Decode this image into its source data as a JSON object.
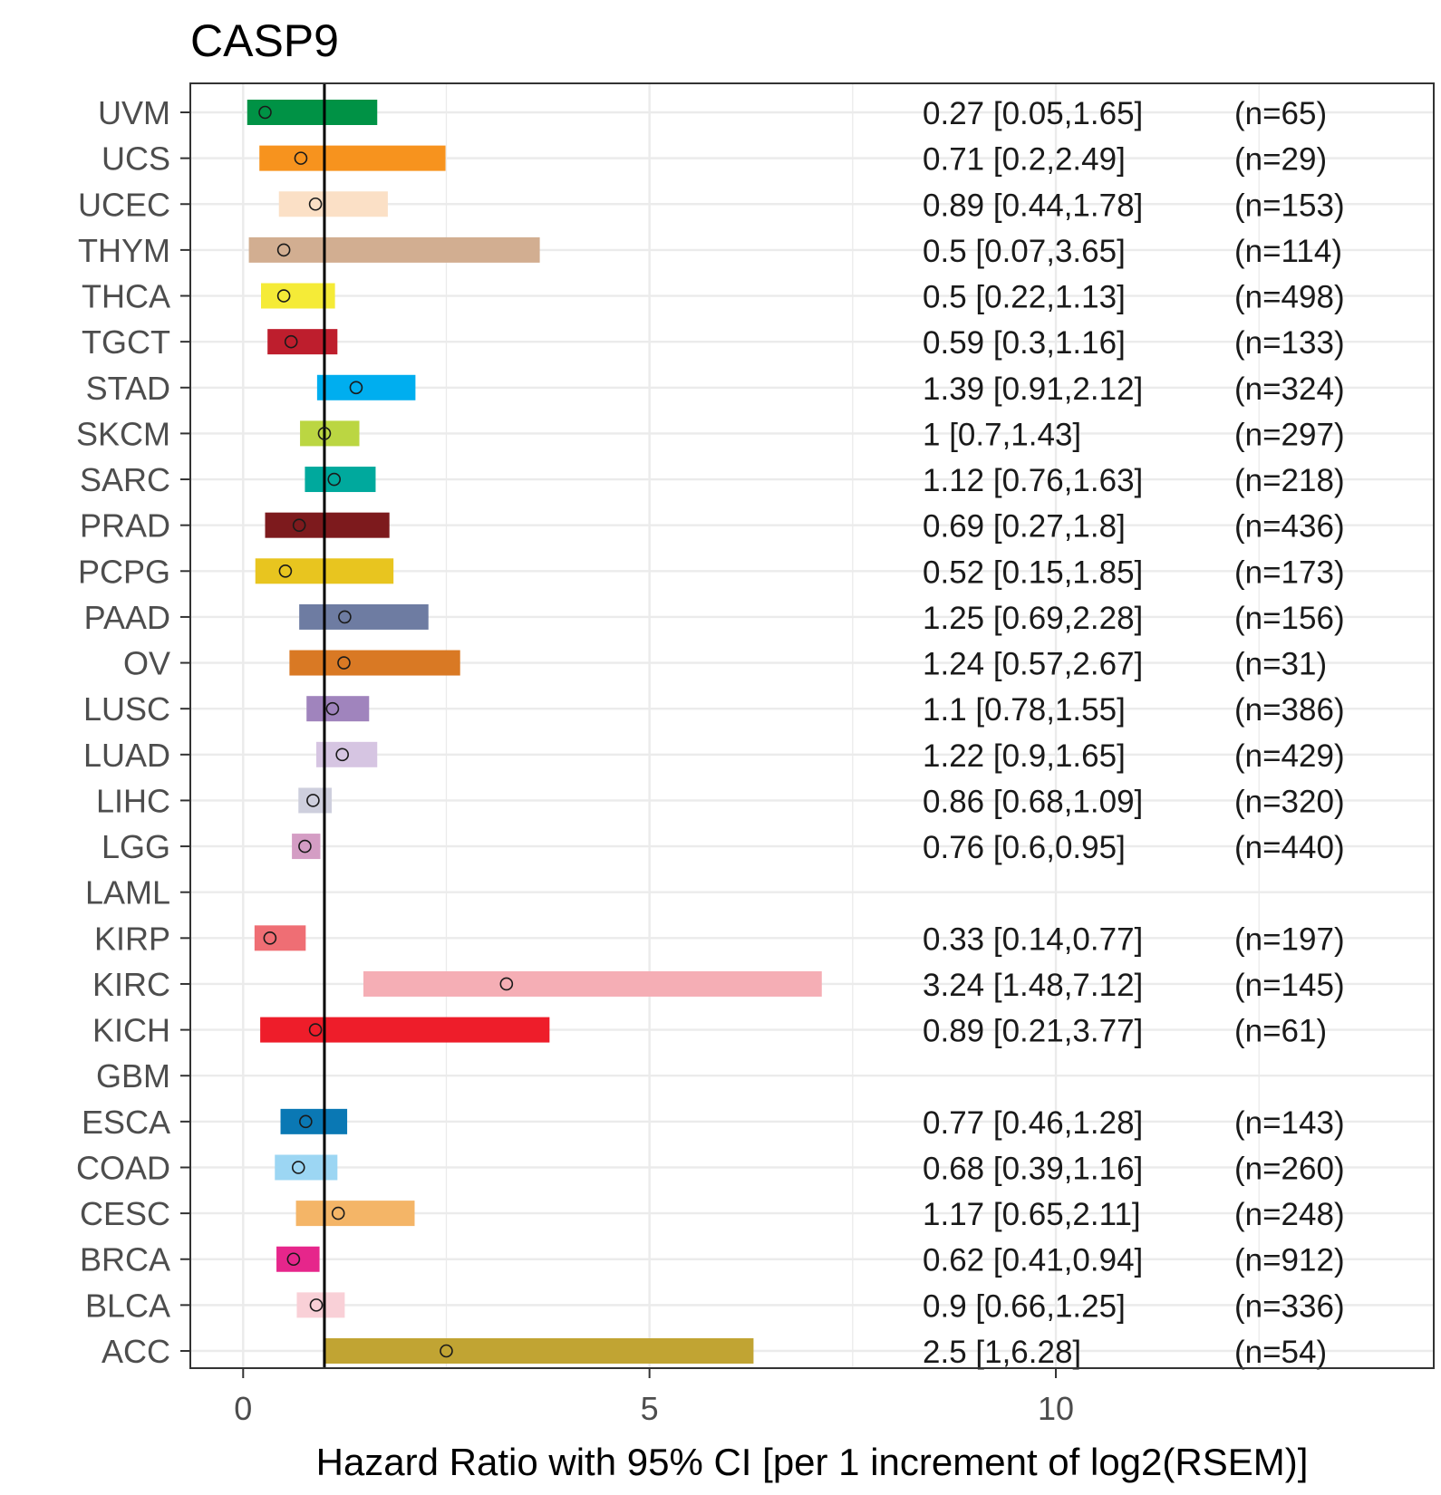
{
  "chart_data": {
    "type": "forest",
    "title": "CASP9",
    "xlabel": "Hazard Ratio with 95% CI [per 1 increment of log2(RSEM)]",
    "ylabel": "",
    "xlim": [
      -0.65,
      14.65
    ],
    "xticks": [
      0,
      5,
      10
    ],
    "xtick_labels": [
      "0",
      "5",
      "10"
    ],
    "reference_line": 1,
    "grid": true,
    "rows": [
      {
        "label": "UVM",
        "hr": 0.27,
        "lo": 0.05,
        "hi": 1.65,
        "text": "0.27 [0.05,1.65]",
        "n": "(n=65)",
        "color": "#009245"
      },
      {
        "label": "UCS",
        "hr": 0.71,
        "lo": 0.2,
        "hi": 2.49,
        "text": "0.71 [0.2,2.49]",
        "n": "(n=29)",
        "color": "#F7931E"
      },
      {
        "label": "UCEC",
        "hr": 0.89,
        "lo": 0.44,
        "hi": 1.78,
        "text": "0.89 [0.44,1.78]",
        "n": "(n=153)",
        "color": "#FBE0C6"
      },
      {
        "label": "THYM",
        "hr": 0.5,
        "lo": 0.07,
        "hi": 3.65,
        "text": "0.5 [0.07,3.65]",
        "n": "(n=114)",
        "color": "#D2AE91"
      },
      {
        "label": "THCA",
        "hr": 0.5,
        "lo": 0.22,
        "hi": 1.13,
        "text": "0.5 [0.22,1.13]",
        "n": "(n=498)",
        "color": "#F5EB37"
      },
      {
        "label": "TGCT",
        "hr": 0.59,
        "lo": 0.3,
        "hi": 1.16,
        "text": "0.59 [0.3,1.16]",
        "n": "(n=133)",
        "color": "#BE1E2D"
      },
      {
        "label": "STAD",
        "hr": 1.39,
        "lo": 0.91,
        "hi": 2.12,
        "text": "1.39 [0.91,2.12]",
        "n": "(n=324)",
        "color": "#00AEEF"
      },
      {
        "label": "SKCM",
        "hr": 1,
        "lo": 0.7,
        "hi": 1.43,
        "text": "1 [0.7,1.43]",
        "n": "(n=297)",
        "color": "#BBD642"
      },
      {
        "label": "SARC",
        "hr": 1.12,
        "lo": 0.76,
        "hi": 1.63,
        "text": "1.12 [0.76,1.63]",
        "n": "(n=218)",
        "color": "#00A99D"
      },
      {
        "label": "PRAD",
        "hr": 0.69,
        "lo": 0.27,
        "hi": 1.8,
        "text": "0.69 [0.27,1.8]",
        "n": "(n=436)",
        "color": "#7D1A1D"
      },
      {
        "label": "PCPG",
        "hr": 0.52,
        "lo": 0.15,
        "hi": 1.85,
        "text": "0.52 [0.15,1.85]",
        "n": "(n=173)",
        "color": "#E8C51F"
      },
      {
        "label": "PAAD",
        "hr": 1.25,
        "lo": 0.69,
        "hi": 2.28,
        "text": "1.25 [0.69,2.28]",
        "n": "(n=156)",
        "color": "#6E7CA2"
      },
      {
        "label": "OV",
        "hr": 1.24,
        "lo": 0.57,
        "hi": 2.67,
        "text": "1.24 [0.57,2.67]",
        "n": "(n=31)",
        "color": "#D97924"
      },
      {
        "label": "LUSC",
        "hr": 1.1,
        "lo": 0.78,
        "hi": 1.55,
        "text": "1.1 [0.78,1.55]",
        "n": "(n=386)",
        "color": "#A084BD"
      },
      {
        "label": "LUAD",
        "hr": 1.22,
        "lo": 0.9,
        "hi": 1.65,
        "text": "1.22 [0.9,1.65]",
        "n": "(n=429)",
        "color": "#D6C5E2"
      },
      {
        "label": "LIHC",
        "hr": 0.86,
        "lo": 0.68,
        "hi": 1.09,
        "text": "0.86 [0.68,1.09]",
        "n": "(n=320)",
        "color": "#CECFDD"
      },
      {
        "label": "LGG",
        "hr": 0.76,
        "lo": 0.6,
        "hi": 0.95,
        "text": "0.76 [0.6,0.95]",
        "n": "(n=440)",
        "color": "#D49DC4"
      },
      {
        "label": "LAML",
        "hr": null,
        "lo": null,
        "hi": null,
        "text": "",
        "n": "",
        "color": "#7E3B8E"
      },
      {
        "label": "KIRP",
        "hr": 0.33,
        "lo": 0.14,
        "hi": 0.77,
        "text": "0.33 [0.14,0.77]",
        "n": "(n=197)",
        "color": "#EF6E74"
      },
      {
        "label": "KIRC",
        "hr": 3.24,
        "lo": 1.48,
        "hi": 7.12,
        "text": "3.24 [1.48,7.12]",
        "n": "(n=145)",
        "color": "#F5AEB5"
      },
      {
        "label": "KICH",
        "hr": 0.89,
        "lo": 0.21,
        "hi": 3.77,
        "text": "0.89 [0.21,3.77]",
        "n": "(n=61)",
        "color": "#EE1D2A"
      },
      {
        "label": "GBM",
        "hr": null,
        "lo": null,
        "hi": null,
        "text": "",
        "n": "",
        "color": "#B2B2B2"
      },
      {
        "label": "ESCA",
        "hr": 0.77,
        "lo": 0.46,
        "hi": 1.28,
        "text": "0.77 [0.46,1.28]",
        "n": "(n=143)",
        "color": "#0A78B4"
      },
      {
        "label": "COAD",
        "hr": 0.68,
        "lo": 0.39,
        "hi": 1.16,
        "text": "0.68 [0.39,1.16]",
        "n": "(n=260)",
        "color": "#9CD6F3"
      },
      {
        "label": "CESC",
        "hr": 1.17,
        "lo": 0.65,
        "hi": 2.11,
        "text": "1.17 [0.65,2.11]",
        "n": "(n=248)",
        "color": "#F4B567"
      },
      {
        "label": "BRCA",
        "hr": 0.62,
        "lo": 0.41,
        "hi": 0.94,
        "text": "0.62 [0.41,0.94]",
        "n": "(n=912)",
        "color": "#E6268B"
      },
      {
        "label": "BLCA",
        "hr": 0.9,
        "lo": 0.66,
        "hi": 1.25,
        "text": "0.9 [0.66,1.25]",
        "n": "(n=336)",
        "color": "#F9D0D7"
      },
      {
        "label": "ACC",
        "hr": 2.5,
        "lo": 1,
        "hi": 6.28,
        "text": "2.5 [1,6.28]",
        "n": "(n=54)",
        "color": "#C1A433"
      }
    ]
  }
}
